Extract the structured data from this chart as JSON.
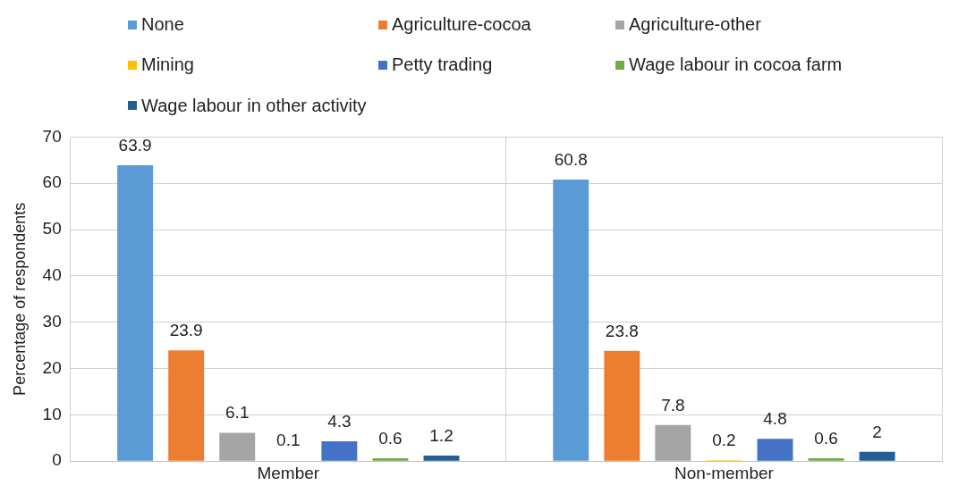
{
  "chart_data": {
    "type": "bar",
    "ylabel": "Percentage of respondents",
    "categories": [
      "Member",
      "Non-member"
    ],
    "series": [
      {
        "name": "None",
        "color": "#5b9bd5",
        "values": [
          63.9,
          60.8
        ]
      },
      {
        "name": "Agriculture-cocoa",
        "color": "#ed7d31",
        "values": [
          23.9,
          23.8
        ]
      },
      {
        "name": "Agriculture-other",
        "color": "#a5a5a5",
        "values": [
          6.1,
          7.8
        ]
      },
      {
        "name": "Mining",
        "color": "#ffc000",
        "values": [
          0.1,
          0.2
        ]
      },
      {
        "name": "Petty trading",
        "color": "#4472c4",
        "values": [
          4.3,
          4.8
        ]
      },
      {
        "name": "Wage labour in cocoa farm",
        "color": "#70ad47",
        "values": [
          0.6,
          0.6
        ]
      },
      {
        "name": "Wage labour in other activity",
        "color": "#255e91",
        "values": [
          1.2,
          2
        ]
      }
    ],
    "ylim": [
      0,
      70
    ],
    "yticks": [
      0,
      10,
      20,
      30,
      40,
      50,
      60,
      70
    ],
    "grid": true,
    "legend": "top",
    "data_labels": true
  }
}
